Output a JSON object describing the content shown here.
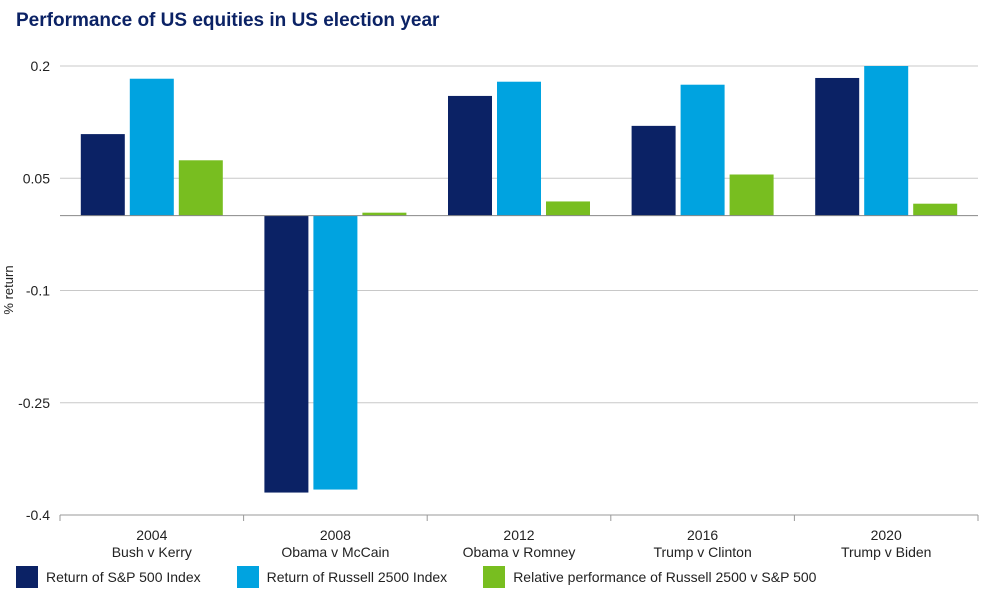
{
  "chart_data": {
    "type": "bar",
    "title": "Performance of US equities in US election year",
    "ylabel": "% return",
    "xlabel": "",
    "ylim": [
      -0.4,
      0.2
    ],
    "yticks": [
      0.2,
      0.05,
      -0.1,
      -0.25,
      -0.4
    ],
    "ytick_labels": [
      "0.2",
      "0.05",
      "-0.1",
      "-0.25",
      "-0.4"
    ],
    "grid": true,
    "legend_position": "bottom",
    "categories": [
      {
        "year": "2004",
        "label": "Bush v Kerry"
      },
      {
        "year": "2008",
        "label": "Obama v McCain"
      },
      {
        "year": "2012",
        "label": "Obama v Romney"
      },
      {
        "year": "2016",
        "label": "Trump v Clinton"
      },
      {
        "year": "2020",
        "label": "Trump v Biden"
      }
    ],
    "series": [
      {
        "name": "Return of S&P 500 Index",
        "color": "#0b2265",
        "values": [
          0.109,
          -0.37,
          0.16,
          0.12,
          0.184
        ]
      },
      {
        "name": "Return of Russell 2500 Index",
        "color": "#00a3e0",
        "values": [
          0.183,
          -0.366,
          0.179,
          0.175,
          0.2
        ]
      },
      {
        "name": "Relative performance of Russell 2500 v S&P 500",
        "color": "#78be20",
        "values": [
          0.074,
          0.004,
          0.019,
          0.055,
          0.016
        ]
      }
    ]
  }
}
